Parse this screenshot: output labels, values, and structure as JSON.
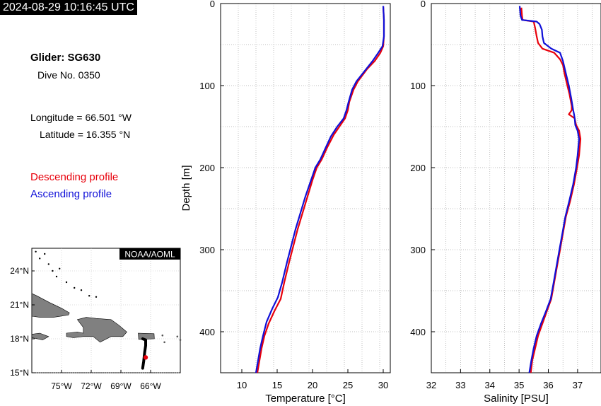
{
  "header": {
    "timestamp": "2024-08-29 10:16:45 UTC"
  },
  "info": {
    "glider": "Glider: SG630",
    "dive": "Dive No. 0350",
    "longitude": "Longitude = 66.501 °W",
    "latitude": "Latitude = 16.355 °N",
    "descending_label": "Descending profile",
    "ascending_label": "Ascending profile"
  },
  "colors": {
    "descending": "#e8000b",
    "ascending": "#1010d8",
    "land": "#808080",
    "track": "#000000"
  },
  "map": {
    "credit": "NOAA/AOML",
    "lon_range": [
      -78,
      -63
    ],
    "lat_range": [
      15,
      26
    ],
    "lon_ticks": [
      -75,
      -72,
      -69,
      -66
    ],
    "lon_labels": [
      "75°W",
      "72°W",
      "69°W",
      "66°W"
    ],
    "lat_ticks": [
      24,
      21,
      18,
      15
    ],
    "lat_labels": [
      "24°N",
      "21°N",
      "18°N",
      "15°N"
    ],
    "track": [
      [
        -66.8,
        18.0
      ],
      [
        -66.5,
        17.9
      ],
      [
        -66.5,
        17.4
      ],
      [
        -66.6,
        16.8
      ],
      [
        -66.7,
        16.0
      ],
      [
        -66.8,
        15.4
      ]
    ],
    "current_position": [
      -66.501,
      16.355
    ]
  },
  "chart_data": [
    {
      "type": "line",
      "xlabel": "Temperature [°C]",
      "ylabel": "Depth [m]",
      "xlim": [
        7,
        31
      ],
      "ylim": [
        450,
        0
      ],
      "x_ticks": [
        10,
        15,
        20,
        25,
        30
      ],
      "y_ticks": [
        0,
        100,
        200,
        300,
        400
      ],
      "grid": true,
      "series": [
        {
          "name": "Descending profile",
          "color": "#e8000b",
          "points": [
            [
              30.0,
              3
            ],
            [
              30.1,
              20
            ],
            [
              30.1,
              40
            ],
            [
              30.0,
              52
            ],
            [
              29.6,
              60
            ],
            [
              28.8,
              70
            ],
            [
              27.7,
              80
            ],
            [
              26.4,
              95
            ],
            [
              25.8,
              105
            ],
            [
              25.2,
              120
            ],
            [
              25.0,
              130
            ],
            [
              24.6,
              140
            ],
            [
              23.8,
              150
            ],
            [
              23.0,
              160
            ],
            [
              22.1,
              175
            ],
            [
              21.3,
              190
            ],
            [
              20.6,
              200
            ],
            [
              20.0,
              215
            ],
            [
              19.3,
              235
            ],
            [
              18.6,
              255
            ],
            [
              17.9,
              275
            ],
            [
              17.3,
              295
            ],
            [
              16.7,
              315
            ],
            [
              16.0,
              340
            ],
            [
              15.5,
              360
            ],
            [
              14.6,
              375
            ],
            [
              13.8,
              390
            ],
            [
              13.2,
              405
            ],
            [
              12.8,
              420
            ],
            [
              12.5,
              435
            ],
            [
              12.2,
              450
            ]
          ]
        },
        {
          "name": "Ascending profile",
          "color": "#1010d8",
          "points": [
            [
              30.0,
              3
            ],
            [
              30.1,
              20
            ],
            [
              30.1,
              40
            ],
            [
              29.9,
              52
            ],
            [
              29.3,
              60
            ],
            [
              28.5,
              70
            ],
            [
              27.4,
              82
            ],
            [
              26.2,
              95
            ],
            [
              25.6,
              105
            ],
            [
              25.1,
              120
            ],
            [
              24.8,
              130
            ],
            [
              24.4,
              140
            ],
            [
              23.5,
              150
            ],
            [
              22.6,
              162
            ],
            [
              21.9,
              175
            ],
            [
              21.1,
              190
            ],
            [
              20.4,
              200
            ],
            [
              19.8,
              215
            ],
            [
              19.0,
              235
            ],
            [
              18.3,
              255
            ],
            [
              17.6,
              275
            ],
            [
              17.0,
              295
            ],
            [
              16.4,
              315
            ],
            [
              15.7,
              340
            ],
            [
              15.1,
              358
            ],
            [
              14.3,
              372
            ],
            [
              13.5,
              388
            ],
            [
              13.0,
              405
            ],
            [
              12.6,
              420
            ],
            [
              12.3,
              435
            ],
            [
              12.0,
              450
            ]
          ]
        }
      ]
    },
    {
      "type": "line",
      "xlabel": "Salinity [PSU]",
      "ylabel": "",
      "xlim": [
        32,
        37.8
      ],
      "ylim": [
        450,
        0
      ],
      "x_ticks": [
        32,
        33,
        34,
        35,
        36,
        37
      ],
      "y_ticks": [
        0,
        100,
        200,
        300,
        400
      ],
      "grid": true,
      "series": [
        {
          "name": "Descending profile",
          "color": "#e8000b",
          "points": [
            [
              35.08,
              5
            ],
            [
              35.1,
              15
            ],
            [
              35.12,
              20
            ],
            [
              35.5,
              22
            ],
            [
              35.55,
              30
            ],
            [
              35.6,
              40
            ],
            [
              35.65,
              48
            ],
            [
              35.8,
              55
            ],
            [
              36.2,
              60
            ],
            [
              36.4,
              68
            ],
            [
              36.5,
              75
            ],
            [
              36.55,
              85
            ],
            [
              36.65,
              100
            ],
            [
              36.72,
              110
            ],
            [
              36.8,
              125
            ],
            [
              36.8,
              130
            ],
            [
              36.7,
              135
            ],
            [
              36.9,
              140
            ],
            [
              36.95,
              148
            ],
            [
              37.05,
              155
            ],
            [
              37.1,
              165
            ],
            [
              37.05,
              185
            ],
            [
              36.98,
              200
            ],
            [
              36.88,
              220
            ],
            [
              36.75,
              240
            ],
            [
              36.6,
              260
            ],
            [
              36.5,
              280
            ],
            [
              36.4,
              300
            ],
            [
              36.3,
              320
            ],
            [
              36.2,
              340
            ],
            [
              36.1,
              360
            ],
            [
              35.95,
              375
            ],
            [
              35.8,
              390
            ],
            [
              35.65,
              405
            ],
            [
              35.55,
              420
            ],
            [
              35.45,
              435
            ],
            [
              35.4,
              450
            ]
          ]
        },
        {
          "name": "Ascending profile",
          "color": "#1010d8",
          "points": [
            [
              35.02,
              3
            ],
            [
              35.05,
              15
            ],
            [
              35.1,
              20
            ],
            [
              35.6,
              22
            ],
            [
              35.7,
              25
            ],
            [
              35.78,
              32
            ],
            [
              35.8,
              40
            ],
            [
              35.85,
              48
            ],
            [
              36.1,
              55
            ],
            [
              36.4,
              60
            ],
            [
              36.5,
              70
            ],
            [
              36.6,
              85
            ],
            [
              36.7,
              100
            ],
            [
              36.78,
              115
            ],
            [
              36.85,
              130
            ],
            [
              36.88,
              135
            ],
            [
              36.9,
              140
            ],
            [
              36.92,
              148
            ],
            [
              37.0,
              155
            ],
            [
              37.05,
              165
            ],
            [
              37.0,
              185
            ],
            [
              36.95,
              200
            ],
            [
              36.85,
              220
            ],
            [
              36.72,
              240
            ],
            [
              36.58,
              260
            ],
            [
              36.48,
              280
            ],
            [
              36.38,
              300
            ],
            [
              36.28,
              320
            ],
            [
              36.18,
              340
            ],
            [
              36.08,
              360
            ],
            [
              35.92,
              375
            ],
            [
              35.75,
              390
            ],
            [
              35.6,
              405
            ],
            [
              35.5,
              420
            ],
            [
              35.42,
              435
            ],
            [
              35.35,
              450
            ]
          ]
        }
      ]
    }
  ]
}
